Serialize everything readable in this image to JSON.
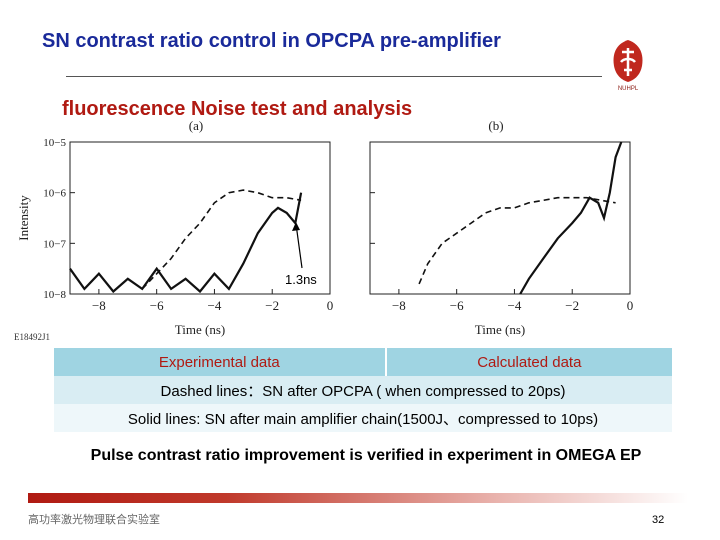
{
  "header": {
    "title": "SN contrast ratio control in OPCPA pre-amplifier",
    "subtitle": "fluorescence Noise test and analysis",
    "logo_text": "NUHPL"
  },
  "chart_data": [
    {
      "type": "line",
      "panel_label": "(a)",
      "xlabel": "Time (ns)",
      "ylabel": "Intensity",
      "xlim": [
        -9,
        0
      ],
      "ylim_log10": [
        -8,
        -5
      ],
      "x_ticks": [
        "−8",
        "−6",
        "−4",
        "−2",
        "0"
      ],
      "y_ticks": [
        "10−5",
        "10−6",
        "10−7",
        "10−8"
      ],
      "annotation": "1.3ns",
      "series": [
        {
          "style": "dashed",
          "x": [
            -6.5,
            -6,
            -5.5,
            -5,
            -4.5,
            -4,
            -3.5,
            -3,
            -2.5,
            -2,
            -1.5,
            -1
          ],
          "log10y": [
            -7.9,
            -7.6,
            -7.3,
            -6.9,
            -6.6,
            -6.2,
            -6.0,
            -5.95,
            -6.0,
            -6.1,
            -6.1,
            -6.15
          ]
        },
        {
          "style": "solid",
          "x": [
            -9,
            -8.5,
            -8,
            -7.5,
            -7,
            -6.5,
            -6,
            -5.5,
            -5,
            -4.5,
            -4,
            -3.5,
            -3,
            -2.5,
            -2,
            -1.8,
            -1.5,
            -1.2,
            -1
          ],
          "log10y": [
            -7.5,
            -7.9,
            -7.6,
            -7.95,
            -7.7,
            -7.9,
            -7.5,
            -7.9,
            -7.7,
            -7.95,
            -7.6,
            -7.9,
            -7.4,
            -6.8,
            -6.4,
            -6.3,
            -6.4,
            -6.6,
            -6.0
          ]
        }
      ]
    },
    {
      "type": "line",
      "panel_label": "(b)",
      "xlabel": "Time (ns)",
      "ylabel": "",
      "xlim": [
        -9,
        0
      ],
      "ylim_log10": [
        -8,
        -5
      ],
      "x_ticks": [
        "−8",
        "−6",
        "−4",
        "−2",
        "0"
      ],
      "series": [
        {
          "style": "dashed",
          "x": [
            -7.3,
            -7,
            -6.5,
            -6,
            -5.5,
            -5,
            -4.5,
            -4,
            -3.5,
            -3,
            -2.5,
            -2,
            -1.5,
            -1,
            -0.5
          ],
          "log10y": [
            -7.8,
            -7.4,
            -7.0,
            -6.8,
            -6.6,
            -6.4,
            -6.3,
            -6.3,
            -6.2,
            -6.15,
            -6.1,
            -6.1,
            -6.1,
            -6.15,
            -6.2
          ]
        },
        {
          "style": "solid",
          "x": [
            -3.8,
            -3.5,
            -3,
            -2.5,
            -2,
            -1.7,
            -1.4,
            -1.1,
            -0.9,
            -0.7,
            -0.5,
            -0.3
          ],
          "log10y": [
            -8.0,
            -7.7,
            -7.3,
            -6.9,
            -6.6,
            -6.4,
            -6.1,
            -6.2,
            -6.5,
            -6.0,
            -5.3,
            -5.0
          ]
        }
      ]
    }
  ],
  "figure_id": "E18492J1",
  "table": {
    "header": [
      "Experimental data",
      "Calculated data"
    ],
    "rows": [
      "Dashed lines：SN after OPCPA ( when compressed to 20ps)",
      "Solid lines: SN after main amplifier chain(1500J、compressed to 10ps)"
    ]
  },
  "conclusion": "Pulse contrast ratio improvement is verified in experiment in OMEGA EP",
  "footer": {
    "lab_name": "高功率激光物理联合实验室",
    "page_number": "32"
  },
  "colors": {
    "title": "#1a2a9a",
    "subtitle": "#b01a12",
    "table_header_bg": "#9fd4e2",
    "footer_bar": "#b01a12"
  }
}
